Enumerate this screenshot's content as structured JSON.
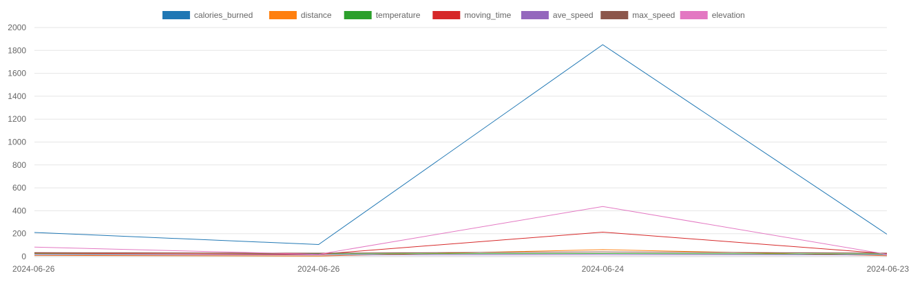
{
  "chart_data": {
    "type": "line",
    "categories": [
      "2024-06-26",
      "2024-06-26",
      "2024-06-24",
      "2024-06-23"
    ],
    "ylim": [
      0,
      2000
    ],
    "yticks": [
      0,
      200,
      400,
      600,
      800,
      1000,
      1200,
      1400,
      1600,
      1800,
      2000
    ],
    "grid": true,
    "legend_position": "top",
    "series": [
      {
        "name": "calories_burned",
        "color": "#1f77b4",
        "values": [
          210,
          105,
          1850,
          195
        ]
      },
      {
        "name": "distance",
        "color": "#ff7f0e",
        "values": [
          10,
          5,
          60,
          8
        ]
      },
      {
        "name": "temperature",
        "color": "#2ca02c",
        "values": [
          25,
          24,
          27,
          23
        ]
      },
      {
        "name": "moving_time",
        "color": "#d62728",
        "values": [
          30,
          20,
          213,
          25
        ]
      },
      {
        "name": "ave_speed",
        "color": "#9467bd",
        "values": [
          15,
          14,
          16,
          14
        ]
      },
      {
        "name": "max_speed",
        "color": "#8c564b",
        "values": [
          35,
          30,
          40,
          30
        ]
      },
      {
        "name": "elevation",
        "color": "#e377c2",
        "values": [
          82,
          20,
          437,
          20
        ]
      }
    ]
  }
}
